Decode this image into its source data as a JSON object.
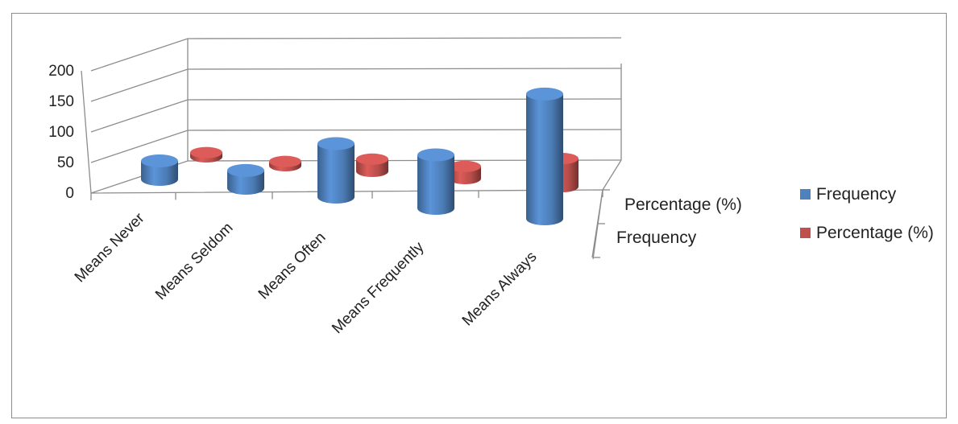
{
  "chart_data": {
    "type": "bar",
    "style": "3d-cylinder",
    "categories": [
      "Means Never",
      "Means Seldom",
      "Means Often",
      "Means Frequently",
      "Means Always"
    ],
    "series": [
      {
        "name": "Frequency",
        "color": "#4f81bd",
        "values": [
          28,
          27,
          81,
          81,
          189
        ]
      },
      {
        "name": "Percentage (%)",
        "color": "#c0504d",
        "values": [
          7,
          7,
          20,
          20,
          46
        ]
      }
    ],
    "depth_labels": [
      "Percentage (%)",
      "Frequency"
    ],
    "y_ticks": [
      0,
      50,
      100,
      150,
      200
    ],
    "ylim": [
      0,
      200
    ],
    "legend_position": "right",
    "grid": true
  }
}
